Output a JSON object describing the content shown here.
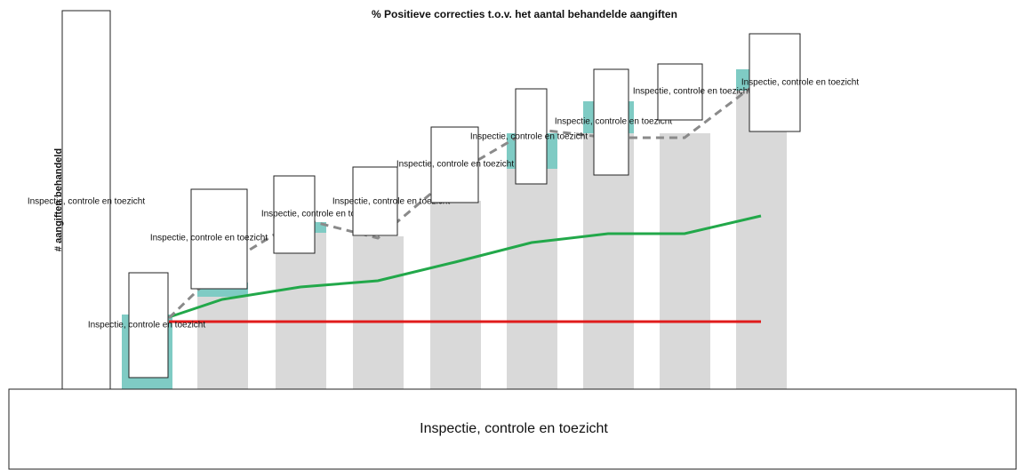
{
  "chart_data": {
    "type": "bar",
    "title": "% Positieve correcties t.o.v. het aantal behandelde aangiften",
    "y_label": "# aangiften behandeld",
    "x_label": "Inspectie, controle en toezicht",
    "categories": [
      null,
      null,
      null,
      null,
      null,
      null,
      null,
      null,
      null
    ],
    "ylim": [
      0,
      100
    ],
    "bars": [
      {
        "color": "#7fcbc4",
        "values": [
          21,
          30,
          47,
          43,
          53,
          72,
          81,
          72,
          90
        ]
      },
      {
        "color": "#d9d9d9",
        "values": [
          0,
          26,
          44,
          43,
          53,
          62,
          72,
          72,
          84
        ]
      }
    ],
    "lines": [
      {
        "color": "#e01b1b",
        "dash": false,
        "values": [
          19,
          19,
          19,
          19,
          19,
          19,
          19,
          19,
          19
        ]
      },
      {
        "color": "#22a84a",
        "dash": false,
        "values": [
          20.25,
          25.25,
          28.75,
          30.5,
          35.75,
          41.25,
          43.75,
          43.75,
          48.75
        ]
      },
      {
        "color": "#8a8a8a",
        "dash": true,
        "values": [
          20,
          34.5,
          48,
          42.5,
          60.75,
          73.25,
          70.75,
          70.75,
          87
        ]
      }
    ],
    "box_labels": [
      "Inspectie, controle en toezicht",
      "Inspectie, controle en toezicht",
      "Inspectie, controle en toezicht",
      "Inspectie, controle en toezicht",
      "Inspectie, controle en toezicht",
      "Inspectie, controle en toezicht",
      "Inspectie, controle en toezicht",
      "Inspectie, controle en toezicht",
      "Inspectie, controle en toezicht",
      "Inspectie, controle en toezicht"
    ]
  }
}
